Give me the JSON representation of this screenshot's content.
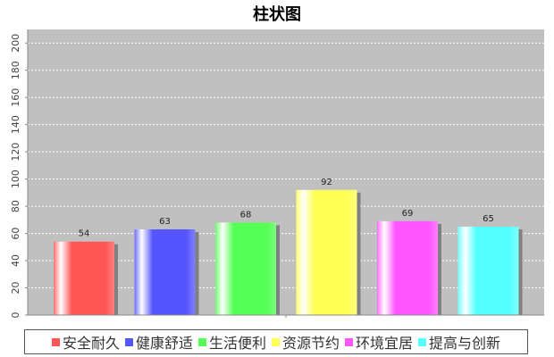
{
  "chart_data": {
    "type": "bar",
    "title": "柱状图",
    "categories": [
      "安全耐久",
      "健康舒适",
      "生活便利",
      "资源节约",
      "环境宜居",
      "提高与创新"
    ],
    "values": [
      54,
      63,
      68,
      92,
      69,
      65
    ],
    "colors": [
      "#ff5555",
      "#5555ff",
      "#55ff55",
      "#ffff55",
      "#ff55ff",
      "#55ffff"
    ],
    "ylim": [
      0,
      210
    ],
    "yticks": [
      0,
      20,
      40,
      60,
      80,
      100,
      120,
      140,
      160,
      180,
      200
    ],
    "grid": true,
    "plot_background": "#c0c0c0",
    "legend_position": "bottom"
  }
}
